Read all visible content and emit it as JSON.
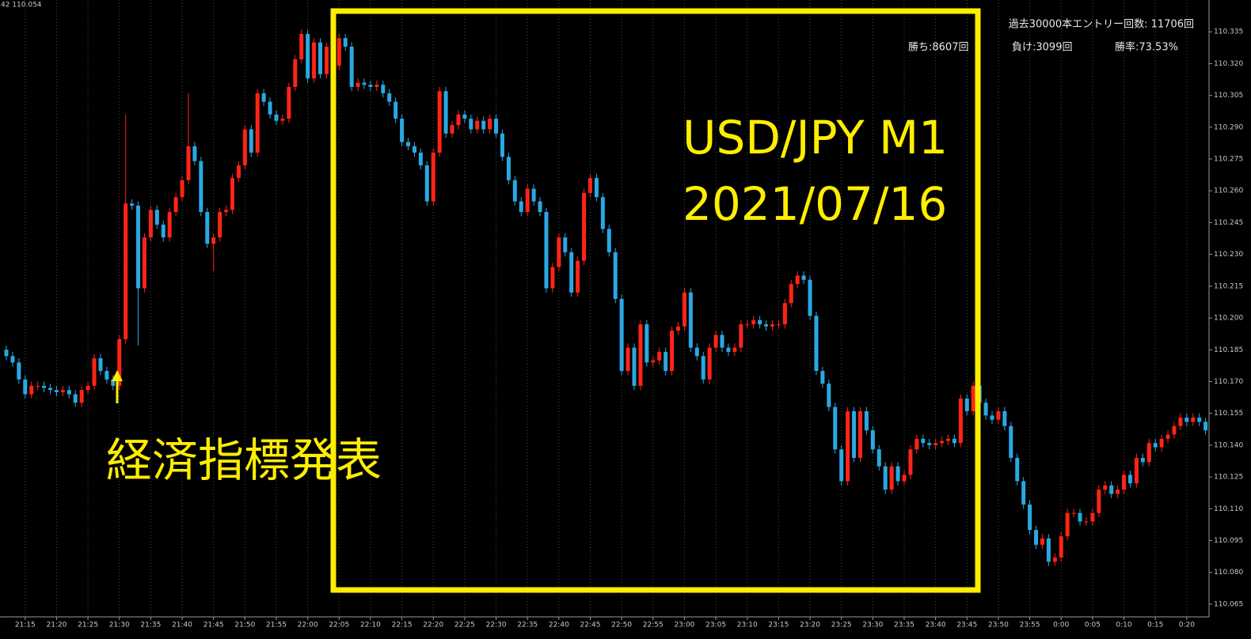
{
  "chart_data": {
    "type": "candlestick",
    "corner_label": "42 110.054",
    "annotations": [
      "USD/JPY M1",
      "2021/07/16",
      "経済指標発表"
    ],
    "info": [
      "過去30000本エントリー回数: 11706回",
      "勝ち:8607回",
      "負け:3099回",
      "勝率:73.53%"
    ],
    "up_color": "#ff2418",
    "down_color": "#2aa8e4",
    "grid": true,
    "ylim": [
      110.059,
      110.35
    ],
    "yticks": [
      110.065,
      {
        "value": 110.08,
        "label": "110.080"
      },
      110.095,
      {
        "value": 110.11,
        "label": "110.110"
      },
      110.125,
      {
        "value": 110.14,
        "label": "110.140"
      },
      110.155,
      {
        "value": 110.17,
        "label": "110.170"
      },
      110.185,
      {
        "value": 110.2,
        "label": "110.200"
      },
      110.215,
      {
        "value": 110.23,
        "label": "110.230"
      },
      110.245,
      {
        "value": 110.26,
        "label": "110.260"
      },
      110.275,
      {
        "value": 110.29,
        "label": "110.290"
      },
      110.305,
      {
        "value": 110.32,
        "label": "110.320"
      },
      110.335
    ],
    "categories": [
      null,
      null,
      null,
      "21:15",
      null,
      null,
      null,
      null,
      "21:20",
      null,
      null,
      null,
      null,
      "21:25",
      null,
      null,
      null,
      null,
      "21:30",
      null,
      null,
      null,
      null,
      "21:35",
      null,
      null,
      null,
      null,
      "21:40",
      null,
      null,
      null,
      null,
      "21:45",
      null,
      null,
      null,
      null,
      "21:50",
      null,
      null,
      null,
      null,
      "21:55",
      null,
      null,
      null,
      null,
      "22:00",
      null,
      null,
      null,
      null,
      "22:05",
      null,
      null,
      null,
      null,
      "22:10",
      null,
      null,
      null,
      null,
      "22:15",
      null,
      null,
      null,
      null,
      "22:20",
      null,
      null,
      null,
      null,
      "22:25",
      null,
      null,
      null,
      null,
      "22:30",
      null,
      null,
      null,
      null,
      "22:35",
      null,
      null,
      null,
      null,
      "22:40",
      null,
      null,
      null,
      null,
      "22:45",
      null,
      null,
      null,
      null,
      "22:50",
      null,
      null,
      null,
      null,
      "22:55",
      null,
      null,
      null,
      null,
      "23:00",
      null,
      null,
      null,
      null,
      "23:05",
      null,
      null,
      null,
      null,
      "23:10",
      null,
      null,
      null,
      null,
      "23:15",
      null,
      null,
      null,
      null,
      "23:20",
      null,
      null,
      null,
      null,
      "23:25",
      null,
      null,
      null,
      null,
      "23:30",
      null,
      null,
      null,
      null,
      "23:35",
      null,
      null,
      null,
      null,
      "23:40",
      null,
      null,
      null,
      null,
      "23:45",
      null,
      null,
      null,
      null,
      "23:50",
      null,
      null,
      null,
      null,
      "23:55",
      null,
      null,
      null,
      null,
      "0:00",
      null,
      null,
      null,
      null,
      "0:05",
      null,
      null,
      null,
      null,
      "0:10",
      null,
      null,
      null,
      null,
      "0:15",
      null,
      null,
      null,
      null,
      "0:20",
      null,
      null,
      null
    ],
    "open": [
      110.185,
      110.182,
      110.179,
      110.171,
      110.164,
      110.168,
      110.168,
      110.167,
      110.166,
      110.165,
      110.166,
      110.164,
      110.16,
      110.166,
      110.168,
      110.181,
      110.175,
      110.171,
      110.168,
      110.19,
      110.254,
      110.253,
      110.214,
      110.238,
      110.251,
      110.244,
      110.238,
      110.25,
      110.257,
      110.265,
      110.281,
      110.274,
      110.25,
      110.235,
      110.238,
      110.25,
      110.251,
      110.266,
      110.272,
      110.289,
      110.278,
      110.306,
      110.302,
      110.296,
      110.293,
      110.294,
      110.309,
      110.322,
      110.334,
      110.313,
      110.33,
      110.315,
      110.328,
      110.319,
      110.332,
      110.328,
      110.309,
      110.311,
      110.31,
      110.309,
      110.31,
      110.306,
      110.302,
      110.294,
      110.283,
      110.281,
      110.278,
      110.272,
      110.255,
      110.278,
      110.307,
      110.287,
      110.291,
      110.296,
      110.294,
      110.289,
      110.293,
      110.289,
      110.294,
      110.287,
      110.276,
      110.265,
      110.255,
      110.25,
      110.261,
      110.255,
      110.25,
      110.214,
      110.224,
      110.238,
      110.231,
      110.212,
      110.227,
      110.259,
      110.266,
      110.257,
      110.242,
      110.231,
      110.209,
      110.175,
      110.186,
      110.168,
      110.197,
      110.179,
      110.18,
      110.184,
      110.175,
      110.194,
      110.196,
      110.212,
      110.186,
      110.182,
      110.171,
      110.186,
      110.192,
      110.186,
      110.184,
      110.186,
      110.197,
      110.197,
      110.199,
      110.197,
      110.196,
      110.197,
      110.197,
      110.207,
      110.216,
      110.22,
      110.218,
      110.201,
      110.175,
      110.169,
      110.158,
      110.138,
      110.123,
      110.156,
      110.134,
      110.156,
      110.147,
      110.138,
      110.13,
      110.119,
      110.13,
      110.123,
      110.126,
      110.138,
      110.143,
      110.141,
      110.14,
      110.141,
      110.142,
      110.143,
      110.141,
      110.162,
      110.156,
      110.168,
      110.16,
      110.154,
      110.152,
      110.156,
      110.149,
      110.134,
      110.123,
      110.112,
      110.1,
      110.093,
      110.096,
      110.085,
      110.087,
      110.097,
      110.108,
      110.108,
      110.104,
      110.104,
      110.108,
      110.119,
      110.121,
      110.117,
      110.119,
      110.126,
      110.122,
      110.134,
      110.132,
      110.141,
      110.139,
      110.143,
      110.145,
      110.149,
      110.153,
      110.151,
      110.153,
      110.151
    ],
    "high": [
      110.187,
      110.184,
      110.181,
      110.173,
      110.17,
      110.17,
      110.17,
      110.169,
      110.168,
      110.168,
      110.168,
      110.166,
      110.168,
      110.17,
      110.183,
      110.183,
      110.177,
      110.173,
      110.192,
      110.296,
      110.256,
      110.255,
      110.24,
      110.253,
      110.253,
      110.246,
      110.252,
      110.259,
      110.267,
      110.306,
      110.283,
      110.276,
      110.252,
      110.24,
      110.252,
      110.253,
      110.268,
      110.274,
      110.291,
      110.291,
      110.308,
      110.308,
      110.304,
      110.298,
      110.296,
      110.311,
      110.324,
      110.336,
      110.336,
      110.332,
      110.332,
      110.33,
      110.33,
      110.334,
      110.334,
      110.33,
      110.313,
      110.313,
      110.312,
      110.312,
      110.312,
      110.308,
      110.304,
      110.296,
      110.285,
      110.283,
      110.28,
      110.274,
      110.28,
      110.309,
      110.309,
      110.293,
      110.298,
      110.298,
      110.296,
      110.295,
      110.295,
      110.296,
      110.296,
      110.289,
      110.278,
      110.267,
      110.257,
      110.263,
      110.263,
      110.257,
      110.252,
      110.226,
      110.24,
      110.24,
      110.233,
      110.229,
      110.261,
      110.268,
      110.268,
      110.259,
      110.244,
      110.233,
      110.211,
      110.188,
      110.188,
      110.199,
      110.199,
      110.182,
      110.186,
      110.186,
      110.196,
      110.198,
      110.214,
      110.214,
      110.188,
      110.184,
      110.188,
      110.194,
      110.194,
      110.188,
      110.188,
      110.199,
      110.199,
      110.201,
      110.201,
      110.199,
      110.199,
      110.199,
      110.209,
      110.218,
      110.222,
      110.222,
      110.22,
      110.203,
      110.177,
      110.171,
      110.16,
      110.14,
      110.158,
      110.158,
      110.158,
      110.158,
      110.149,
      110.14,
      110.132,
      110.132,
      110.132,
      110.128,
      110.14,
      110.145,
      110.145,
      110.143,
      110.143,
      110.144,
      110.145,
      110.145,
      110.164,
      110.164,
      110.17,
      110.17,
      110.162,
      110.156,
      110.158,
      110.158,
      110.151,
      110.136,
      110.125,
      110.114,
      110.102,
      110.098,
      110.098,
      110.089,
      110.099,
      110.11,
      110.11,
      110.11,
      110.106,
      110.11,
      110.121,
      110.123,
      110.123,
      110.121,
      110.128,
      110.128,
      110.136,
      110.136,
      110.143,
      110.143,
      110.145,
      110.147,
      110.151,
      110.155,
      110.155,
      110.155,
      110.155,
      110.153
    ],
    "low": [
      110.18,
      110.177,
      110.169,
      110.162,
      110.162,
      110.166,
      110.165,
      110.164,
      110.163,
      110.163,
      110.162,
      110.158,
      110.158,
      110.164,
      110.166,
      110.173,
      110.169,
      110.166,
      110.166,
      110.188,
      110.251,
      110.187,
      110.212,
      110.236,
      110.242,
      110.236,
      110.236,
      110.248,
      110.255,
      110.263,
      110.272,
      110.248,
      110.233,
      110.222,
      110.236,
      110.248,
      110.249,
      110.264,
      110.27,
      110.276,
      110.276,
      110.3,
      110.294,
      110.291,
      110.291,
      110.292,
      110.307,
      110.32,
      110.311,
      110.311,
      110.313,
      110.313,
      110.317,
      110.317,
      110.326,
      110.307,
      110.307,
      110.308,
      110.307,
      110.307,
      110.304,
      110.3,
      110.292,
      110.281,
      110.279,
      110.276,
      110.27,
      110.253,
      110.253,
      110.276,
      110.285,
      110.285,
      110.289,
      110.292,
      110.287,
      110.287,
      110.287,
      110.287,
      110.285,
      110.274,
      110.263,
      110.253,
      110.248,
      110.248,
      110.253,
      110.248,
      110.212,
      110.212,
      110.222,
      110.229,
      110.21,
      110.21,
      110.225,
      110.257,
      110.255,
      110.24,
      110.229,
      110.207,
      110.173,
      110.173,
      110.166,
      110.166,
      110.177,
      110.177,
      110.178,
      110.173,
      110.173,
      110.192,
      110.194,
      110.184,
      110.18,
      110.169,
      110.169,
      110.184,
      110.184,
      110.182,
      110.182,
      110.184,
      110.195,
      110.195,
      110.195,
      110.194,
      110.194,
      110.195,
      110.195,
      110.205,
      110.214,
      110.216,
      110.199,
      110.173,
      110.167,
      110.156,
      110.136,
      110.121,
      110.121,
      110.132,
      110.132,
      110.145,
      110.136,
      110.128,
      110.117,
      110.117,
      110.121,
      110.121,
      110.124,
      110.136,
      110.139,
      110.138,
      110.138,
      110.139,
      110.14,
      110.139,
      110.139,
      110.154,
      110.154,
      110.158,
      110.152,
      110.15,
      110.15,
      110.147,
      110.132,
      110.121,
      110.11,
      110.098,
      110.091,
      110.091,
      110.083,
      110.083,
      110.085,
      110.095,
      110.106,
      110.102,
      110.102,
      110.102,
      110.106,
      110.117,
      110.115,
      110.115,
      110.117,
      110.12,
      110.12,
      110.13,
      110.13,
      110.137,
      110.137,
      110.141,
      110.143,
      110.147,
      110.149,
      110.149,
      110.149,
      110.145
    ],
    "close": [
      110.182,
      110.179,
      110.171,
      110.164,
      110.168,
      110.168,
      110.167,
      110.166,
      110.165,
      110.166,
      110.164,
      110.16,
      110.166,
      110.168,
      110.181,
      110.175,
      110.171,
      110.168,
      110.19,
      110.254,
      110.253,
      110.214,
      110.238,
      110.251,
      110.244,
      110.238,
      110.25,
      110.257,
      110.265,
      110.281,
      110.274,
      110.25,
      110.235,
      110.238,
      110.25,
      110.251,
      110.266,
      110.272,
      110.289,
      110.278,
      110.306,
      110.302,
      110.296,
      110.293,
      110.294,
      110.309,
      110.322,
      110.334,
      110.313,
      110.33,
      110.315,
      110.328,
      110.319,
      110.332,
      110.328,
      110.309,
      110.311,
      110.31,
      110.309,
      110.31,
      110.306,
      110.302,
      110.294,
      110.283,
      110.281,
      110.278,
      110.272,
      110.255,
      110.278,
      110.307,
      110.287,
      110.291,
      110.296,
      110.294,
      110.289,
      110.293,
      110.289,
      110.294,
      110.287,
      110.276,
      110.265,
      110.255,
      110.25,
      110.261,
      110.255,
      110.25,
      110.214,
      110.224,
      110.238,
      110.231,
      110.212,
      110.227,
      110.259,
      110.266,
      110.257,
      110.242,
      110.231,
      110.209,
      110.175,
      110.186,
      110.168,
      110.197,
      110.179,
      110.18,
      110.184,
      110.175,
      110.194,
      110.196,
      110.212,
      110.186,
      110.182,
      110.171,
      110.186,
      110.192,
      110.186,
      110.184,
      110.186,
      110.197,
      110.197,
      110.199,
      110.197,
      110.196,
      110.197,
      110.197,
      110.207,
      110.216,
      110.22,
      110.218,
      110.201,
      110.175,
      110.169,
      110.158,
      110.138,
      110.123,
      110.156,
      110.134,
      110.156,
      110.147,
      110.138,
      110.13,
      110.119,
      110.13,
      110.123,
      110.126,
      110.138,
      110.143,
      110.141,
      110.14,
      110.141,
      110.142,
      110.143,
      110.141,
      110.162,
      110.156,
      110.168,
      110.16,
      110.154,
      110.152,
      110.156,
      110.149,
      110.134,
      110.123,
      110.112,
      110.1,
      110.093,
      110.096,
      110.085,
      110.087,
      110.097,
      110.108,
      110.108,
      110.104,
      110.104,
      110.108,
      110.119,
      110.121,
      110.117,
      110.119,
      110.126,
      110.122,
      110.134,
      110.132,
      110.141,
      110.139,
      110.143,
      110.145,
      110.149,
      110.153,
      110.151,
      110.153,
      110.151,
      110.147
    ]
  }
}
